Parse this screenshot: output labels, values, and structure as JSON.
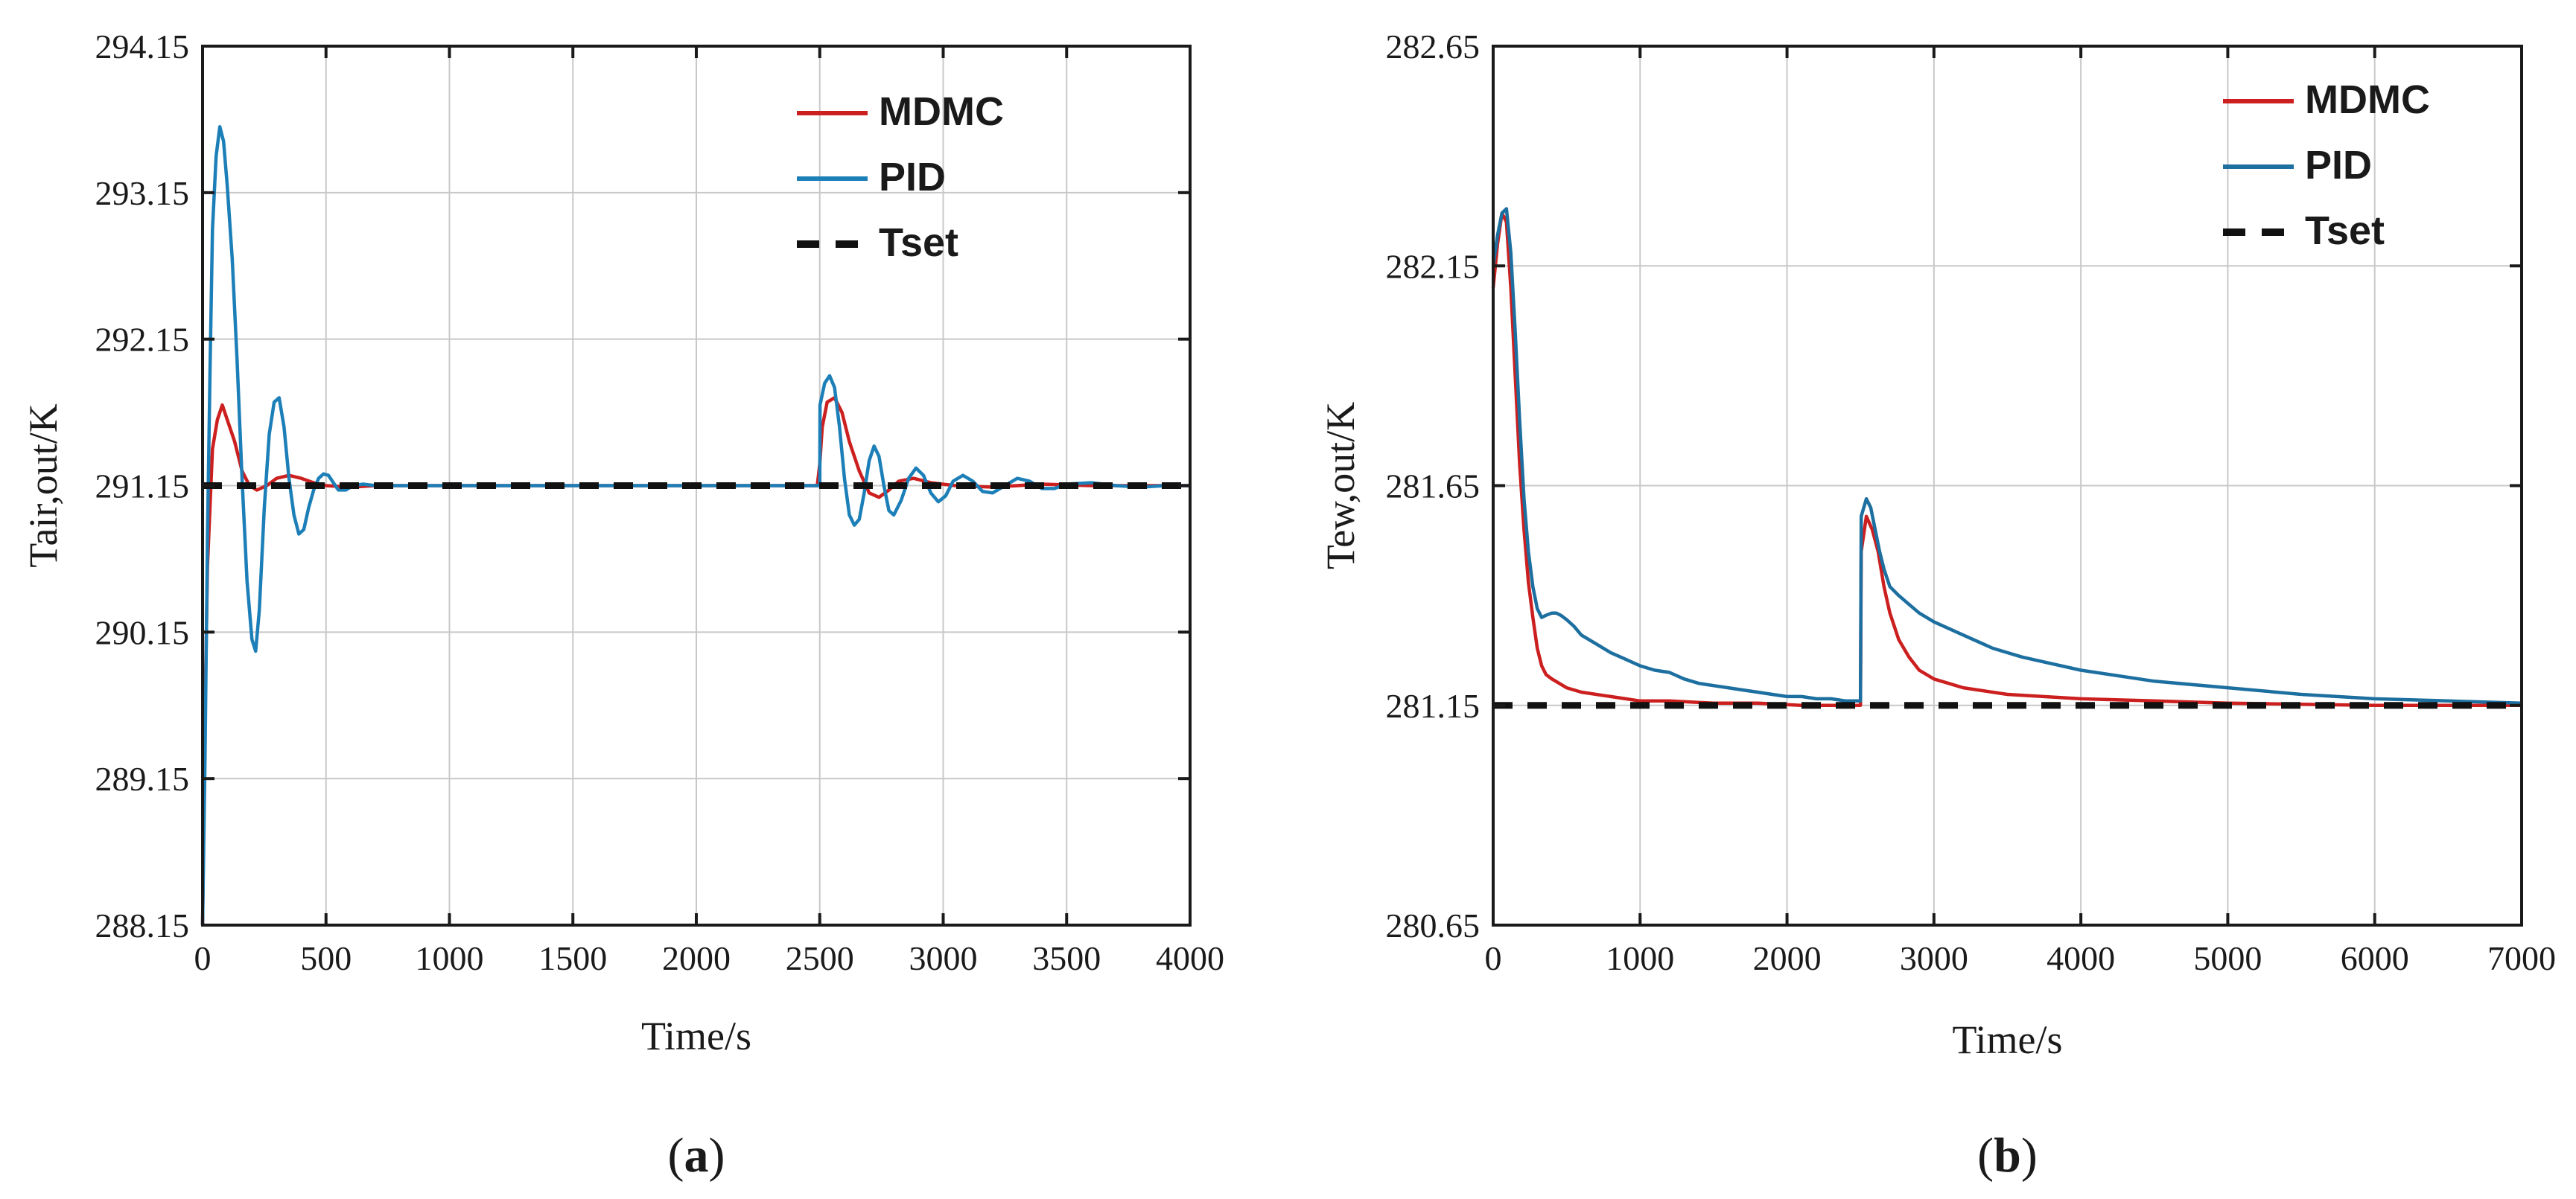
{
  "figure": {
    "panels": [
      "a",
      "b"
    ]
  },
  "chart_data": [
    {
      "id": "a",
      "type": "line",
      "panel_label": "(a)",
      "xlabel": "Time/s",
      "ylabel": "Tair,out/K",
      "xlim": [
        0,
        4000
      ],
      "ylim": [
        288.15,
        294.15
      ],
      "xticks": [
        0,
        500,
        1000,
        1500,
        2000,
        2500,
        3000,
        3500,
        4000
      ],
      "yticks": [
        288.15,
        289.15,
        290.15,
        291.15,
        292.15,
        293.15,
        294.15
      ],
      "xtick_labels": [
        "0",
        "500",
        "1000",
        "1500",
        "2000",
        "2500",
        "3000",
        "3500",
        "4000"
      ],
      "ytick_labels": [
        "288.15",
        "289.15",
        "290.15",
        "291.15",
        "292.15",
        "293.15",
        "294.15"
      ],
      "grid": true,
      "legend_position": "top-right",
      "legend": [
        "MDMC",
        "PID",
        "Tset"
      ],
      "series": [
        {
          "name": "MDMC",
          "color": "#cc1f1f",
          "style": "solid",
          "x": [
            0,
            10,
            20,
            40,
            60,
            80,
            100,
            130,
            160,
            190,
            220,
            260,
            300,
            350,
            400,
            450,
            500,
            600,
            700,
            800,
            1200,
            1800,
            2400,
            2490,
            2500,
            2510,
            2530,
            2560,
            2590,
            2620,
            2660,
            2700,
            2740,
            2780,
            2820,
            2880,
            2950,
            3050,
            3200,
            3400,
            3600,
            3800,
            4000
          ],
          "y": [
            288.15,
            289.6,
            290.6,
            291.4,
            291.6,
            291.7,
            291.6,
            291.45,
            291.25,
            291.15,
            291.12,
            291.15,
            291.2,
            291.22,
            291.2,
            291.17,
            291.15,
            291.14,
            291.15,
            291.15,
            291.15,
            291.15,
            291.15,
            291.15,
            291.3,
            291.55,
            291.72,
            291.75,
            291.65,
            291.45,
            291.25,
            291.1,
            291.07,
            291.12,
            291.18,
            291.2,
            291.17,
            291.15,
            291.14,
            291.16,
            291.15,
            291.15,
            291.15
          ]
        },
        {
          "name": "PID",
          "color": "#1d7fb8",
          "style": "solid",
          "x": [
            0,
            10,
            20,
            30,
            40,
            55,
            70,
            85,
            100,
            120,
            140,
            160,
            180,
            200,
            215,
            230,
            250,
            270,
            290,
            310,
            330,
            350,
            370,
            390,
            410,
            430,
            450,
            470,
            490,
            510,
            530,
            550,
            580,
            610,
            650,
            700,
            800,
            1200,
            1800,
            2400,
            2490,
            2500,
            2501,
            2520,
            2540,
            2560,
            2580,
            2600,
            2620,
            2640,
            2660,
            2680,
            2700,
            2720,
            2740,
            2760,
            2780,
            2800,
            2830,
            2860,
            2890,
            2920,
            2950,
            2980,
            3010,
            3040,
            3080,
            3120,
            3160,
            3200,
            3250,
            3300,
            3350,
            3400,
            3450,
            3500,
            3600,
            3700,
            3800,
            3900,
            4000
          ],
          "y": [
            288.15,
            289.3,
            290.8,
            291.9,
            292.9,
            293.4,
            293.6,
            293.5,
            293.2,
            292.7,
            292.0,
            291.2,
            290.5,
            290.1,
            290.02,
            290.3,
            291.0,
            291.5,
            291.72,
            291.75,
            291.55,
            291.2,
            290.95,
            290.82,
            290.85,
            291.0,
            291.12,
            291.2,
            291.23,
            291.22,
            291.17,
            291.12,
            291.12,
            291.15,
            291.16,
            291.15,
            291.15,
            291.15,
            291.15,
            291.15,
            291.15,
            291.15,
            291.7,
            291.85,
            291.9,
            291.82,
            291.55,
            291.2,
            290.95,
            290.88,
            290.92,
            291.1,
            291.32,
            291.42,
            291.35,
            291.15,
            290.98,
            290.95,
            291.05,
            291.2,
            291.27,
            291.22,
            291.1,
            291.04,
            291.08,
            291.18,
            291.22,
            291.18,
            291.11,
            291.1,
            291.15,
            291.2,
            291.18,
            291.13,
            291.13,
            291.16,
            291.17,
            291.15,
            291.14,
            291.15,
            291.15
          ]
        },
        {
          "name": "Tset",
          "color": "#111111",
          "style": "dashed",
          "x": [
            0,
            4000
          ],
          "y": [
            291.15,
            291.15
          ]
        }
      ]
    },
    {
      "id": "b",
      "type": "line",
      "panel_label": "(b)",
      "xlabel": "Time/s",
      "ylabel": "Tew,out/K",
      "xlim": [
        0,
        7000
      ],
      "ylim": [
        280.65,
        282.65
      ],
      "xticks": [
        0,
        1000,
        2000,
        3000,
        4000,
        5000,
        6000,
        7000
      ],
      "yticks": [
        280.65,
        281.15,
        281.65,
        282.15,
        282.65
      ],
      "xtick_labels": [
        "0",
        "1000",
        "2000",
        "3000",
        "4000",
        "5000",
        "6000",
        "7000"
      ],
      "ytick_labels": [
        "280.65",
        "281.15",
        "281.65",
        "282.15",
        "282.65"
      ],
      "grid": true,
      "legend_position": "top-right",
      "legend": [
        "MDMC",
        "PID",
        "Tset"
      ],
      "series": [
        {
          "name": "MDMC",
          "color": "#cc1f1f",
          "style": "solid",
          "x": [
            0,
            30,
            60,
            90,
            120,
            150,
            180,
            210,
            240,
            270,
            300,
            330,
            360,
            400,
            450,
            500,
            600,
            800,
            1000,
            1200,
            1500,
            1800,
            2100,
            2400,
            2500,
            2505,
            2540,
            2580,
            2620,
            2660,
            2700,
            2760,
            2830,
            2900,
            3000,
            3200,
            3500,
            4000,
            4500,
            5000,
            6000,
            7000
          ],
          "y": [
            282.1,
            282.2,
            282.27,
            282.25,
            282.1,
            281.9,
            281.7,
            281.55,
            281.43,
            281.35,
            281.28,
            281.24,
            281.22,
            281.21,
            281.2,
            281.19,
            281.18,
            281.17,
            281.16,
            281.16,
            281.155,
            281.155,
            281.15,
            281.15,
            281.15,
            281.5,
            281.58,
            281.55,
            281.5,
            281.42,
            281.36,
            281.3,
            281.26,
            281.23,
            281.21,
            281.19,
            281.175,
            281.165,
            281.16,
            281.155,
            281.15,
            281.15
          ]
        },
        {
          "name": "PID",
          "color": "#1d6fa0",
          "style": "solid",
          "x": [
            0,
            30,
            60,
            90,
            120,
            150,
            180,
            210,
            240,
            270,
            300,
            330,
            360,
            400,
            430,
            460,
            500,
            550,
            600,
            700,
            800,
            900,
            1000,
            1100,
            1200,
            1300,
            1400,
            1500,
            1600,
            1700,
            1800,
            1900,
            2000,
            2100,
            2200,
            2300,
            2400,
            2500,
            2505,
            2540,
            2570,
            2600,
            2630,
            2660,
            2700,
            2760,
            2830,
            2900,
            3000,
            3200,
            3400,
            3600,
            3800,
            4000,
            4500,
            5000,
            5500,
            6000,
            6500,
            7000
          ],
          "y": [
            282.15,
            282.22,
            282.27,
            282.28,
            282.18,
            282.0,
            281.8,
            281.62,
            281.5,
            281.42,
            281.37,
            281.35,
            281.355,
            281.36,
            281.36,
            281.355,
            281.345,
            281.33,
            281.31,
            281.29,
            281.27,
            281.255,
            281.24,
            281.23,
            281.225,
            281.21,
            281.2,
            281.195,
            281.19,
            281.185,
            281.18,
            281.175,
            281.17,
            281.17,
            281.165,
            281.165,
            281.16,
            281.16,
            281.58,
            281.62,
            281.6,
            281.55,
            281.5,
            281.46,
            281.42,
            281.4,
            281.38,
            281.36,
            281.34,
            281.31,
            281.28,
            281.26,
            281.245,
            281.23,
            281.205,
            281.19,
            281.175,
            281.165,
            281.16,
            281.155
          ]
        },
        {
          "name": "Tset",
          "color": "#111111",
          "style": "dashed",
          "x": [
            0,
            7000
          ],
          "y": [
            281.15,
            281.15
          ]
        }
      ]
    }
  ]
}
